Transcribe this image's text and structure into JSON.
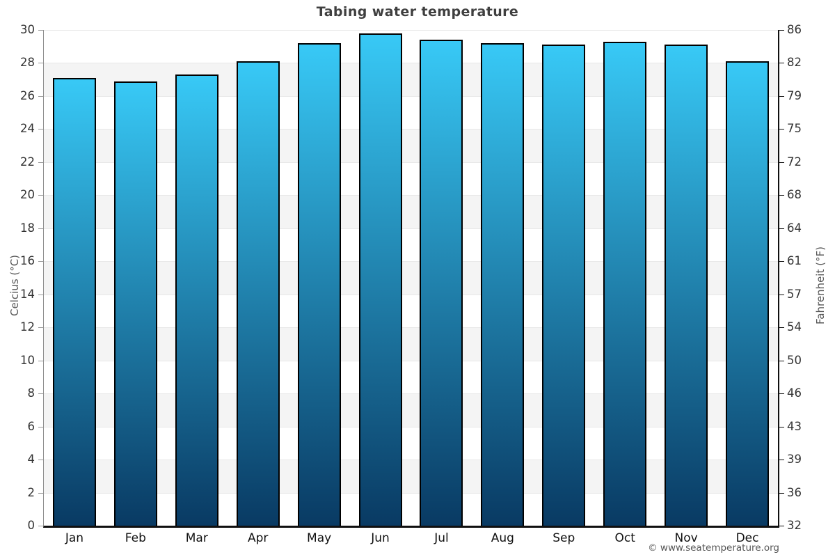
{
  "chart_data": {
    "type": "bar",
    "title": "Tabing water temperature",
    "categories": [
      "Jan",
      "Feb",
      "Mar",
      "Apr",
      "May",
      "Jun",
      "Jul",
      "Aug",
      "Sep",
      "Oct",
      "Nov",
      "Dec"
    ],
    "values": [
      27.1,
      26.9,
      27.3,
      28.1,
      29.2,
      29.8,
      29.4,
      29.2,
      29.1,
      29.3,
      29.1,
      28.1
    ],
    "ylabel_left": "Celcius (°C)",
    "ylabel_right": "Fahrenheit (°F)",
    "xlabel": "",
    "ylim": [
      0,
      30
    ],
    "yticks_celsius": [
      0,
      2,
      4,
      6,
      8,
      10,
      12,
      14,
      16,
      18,
      20,
      22,
      24,
      26,
      28,
      30
    ],
    "yticks_fahrenheit": [
      32,
      36,
      39,
      43,
      46,
      50,
      54,
      57,
      61,
      64,
      68,
      72,
      75,
      79,
      82,
      86
    ],
    "legend": "none",
    "grid": "alternating light horizontal bands every 2°C with thin gridlines",
    "bar_color_top": "#38c9f6",
    "bar_color_bottom": "#093a63",
    "bar_border_color": "#000000",
    "band_color": "#f4f4f4",
    "gridline_color": "#e8e8e8",
    "title_color": "#3f3f3f",
    "axis_tick_text_color": "#333333",
    "axis_title_color": "#555555"
  },
  "footer": {
    "credit": "© www.seatemperature.org"
  }
}
